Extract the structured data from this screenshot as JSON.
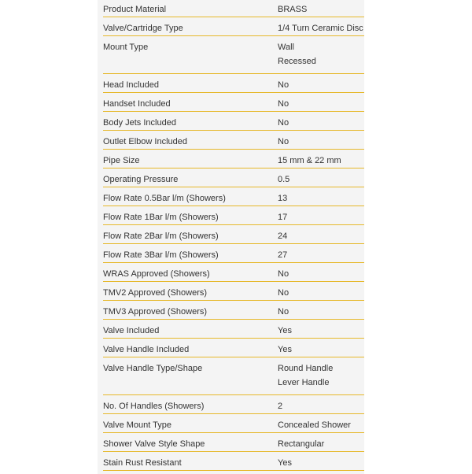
{
  "specs": [
    {
      "label": "Product Material",
      "values": [
        "BRASS"
      ]
    },
    {
      "label": "Valve/Cartridge Type",
      "values": [
        "1/4 Turn Ceramic Disc"
      ]
    },
    {
      "label": "Mount Type",
      "values": [
        "Wall",
        "Recessed"
      ]
    },
    {
      "label": "Head Included",
      "values": [
        "No"
      ]
    },
    {
      "label": "Handset Included",
      "values": [
        "No"
      ]
    },
    {
      "label": "Body Jets Included",
      "values": [
        "No"
      ]
    },
    {
      "label": "Outlet Elbow Included",
      "values": [
        "No"
      ]
    },
    {
      "label": "Pipe Size",
      "values": [
        "15 mm & 22 mm"
      ]
    },
    {
      "label": "Operating Pressure",
      "values": [
        "0.5"
      ]
    },
    {
      "label": "Flow Rate 0.5Bar l/m (Showers)",
      "values": [
        "13"
      ]
    },
    {
      "label": "Flow Rate 1Bar l/m (Showers)",
      "values": [
        "17"
      ]
    },
    {
      "label": "Flow Rate 2Bar l/m (Showers)",
      "values": [
        "24"
      ]
    },
    {
      "label": "Flow Rate 3Bar l/m (Showers)",
      "values": [
        "27"
      ]
    },
    {
      "label": "WRAS Approved (Showers)",
      "values": [
        "No"
      ]
    },
    {
      "label": "TMV2 Approved (Showers)",
      "values": [
        "No"
      ]
    },
    {
      "label": "TMV3 Approved (Showers)",
      "values": [
        "No"
      ]
    },
    {
      "label": "Valve Included",
      "values": [
        "Yes"
      ]
    },
    {
      "label": "Valve Handle Included",
      "values": [
        "Yes"
      ]
    },
    {
      "label": "Valve Handle Type/Shape",
      "values": [
        "Round Handle",
        "Lever Handle"
      ]
    },
    {
      "label": "No. Of Handles (Showers)",
      "values": [
        "2"
      ]
    },
    {
      "label": "Valve Mount Type",
      "values": [
        "Concealed Shower"
      ]
    },
    {
      "label": "Shower Valve Style Shape",
      "values": [
        "Rectangular"
      ]
    },
    {
      "label": "Stain Rust Resistant",
      "values": [
        "Yes"
      ]
    }
  ]
}
